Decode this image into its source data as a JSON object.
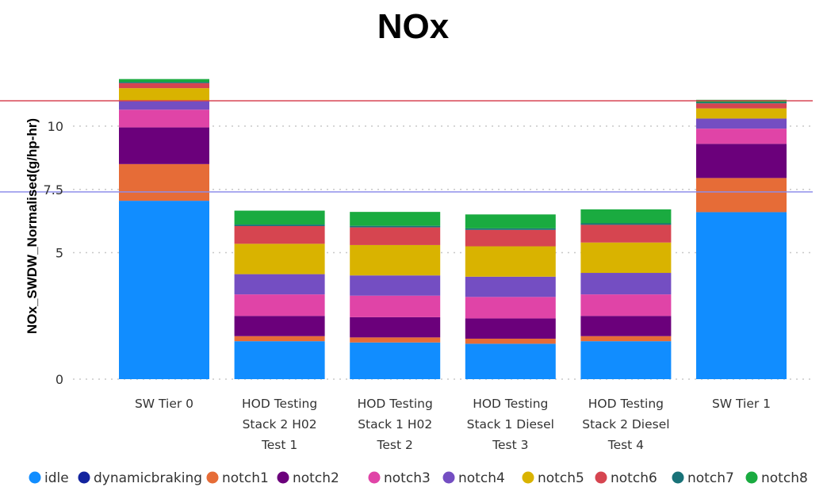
{
  "chart_data": {
    "type": "bar",
    "stacked": true,
    "title": "NOx",
    "xlabel": "",
    "ylabel": "NOx_SWDW_Normalised(g/hp-hr)",
    "ylim": [
      0,
      12
    ],
    "yticks": [
      0,
      5,
      7.5,
      10
    ],
    "ytick_labels": [
      "0",
      "5",
      "7.5",
      "10"
    ],
    "grid": true,
    "legend_position": "bottom",
    "categories": [
      [
        "SW Tier 0"
      ],
      [
        "HOD Testing",
        "Stack 2 H02",
        "Test 1"
      ],
      [
        "HOD Testing",
        "Stack 1 H02",
        "Test 2"
      ],
      [
        "HOD Testing",
        "Stack 1 Diesel",
        "Test 3"
      ],
      [
        "HOD Testing",
        "Stack 2 Diesel",
        "Test 4"
      ],
      [
        "SW Tier 1"
      ]
    ],
    "series": [
      {
        "name": "idle",
        "color": "#118DFF",
        "values": [
          7.05,
          1.5,
          1.45,
          1.4,
          1.5,
          6.6
        ]
      },
      {
        "name": "dynamicbraking",
        "color": "#12239E",
        "values": [
          0,
          0,
          0,
          0,
          0,
          0
        ]
      },
      {
        "name": "notch1",
        "color": "#E66C37",
        "values": [
          1.45,
          0.2,
          0.2,
          0.2,
          0.2,
          1.35
        ]
      },
      {
        "name": "notch2",
        "color": "#6B007B",
        "values": [
          1.45,
          0.8,
          0.8,
          0.8,
          0.8,
          1.35
        ]
      },
      {
        "name": "notch3",
        "color": "#E044A7",
        "values": [
          0.7,
          0.85,
          0.85,
          0.85,
          0.85,
          0.6
        ]
      },
      {
        "name": "notch4",
        "color": "#744EC2",
        "values": [
          0.35,
          0.8,
          0.8,
          0.8,
          0.85,
          0.4
        ]
      },
      {
        "name": "notch5",
        "color": "#D9B300",
        "values": [
          0.5,
          1.2,
          1.2,
          1.2,
          1.2,
          0.4
        ]
      },
      {
        "name": "notch6",
        "color": "#D64550",
        "values": [
          0.2,
          0.7,
          0.7,
          0.65,
          0.7,
          0.2
        ]
      },
      {
        "name": "notch7",
        "color": "#197278",
        "values": [
          0.04,
          0.06,
          0.06,
          0.06,
          0.06,
          0.04
        ]
      },
      {
        "name": "notch8",
        "color": "#1AAB40",
        "values": [
          0.12,
          0.55,
          0.55,
          0.55,
          0.55,
          0.1
        ]
      }
    ],
    "reference_lines": [
      {
        "value": 11.0,
        "color": "#D6404F"
      },
      {
        "value": 7.4,
        "color": "#8D8DEB"
      }
    ]
  }
}
